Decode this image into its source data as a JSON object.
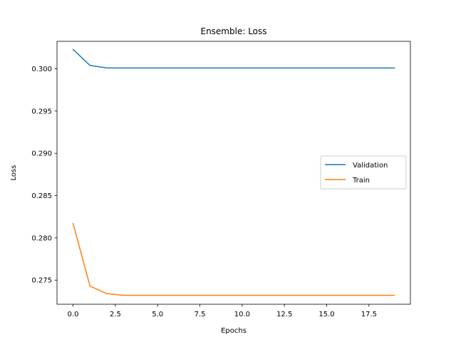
{
  "chart_data": {
    "type": "line",
    "title": "Ensemble: Loss",
    "xlabel": "Epochs",
    "ylabel": "Loss",
    "xlim": [
      -0.95,
      19.95
    ],
    "ylim": [
      0.27215,
      0.30325
    ],
    "xticks": [
      0.0,
      2.5,
      5.0,
      7.5,
      10.0,
      12.5,
      15.0,
      17.5
    ],
    "xtick_labels": [
      "0.0",
      "2.5",
      "5.0",
      "7.5",
      "10.0",
      "12.5",
      "15.0",
      "17.5"
    ],
    "yticks": [
      0.275,
      0.28,
      0.285,
      0.29,
      0.295,
      0.3
    ],
    "ytick_labels": [
      "0.275",
      "0.280",
      "0.285",
      "0.290",
      "0.295",
      "0.300"
    ],
    "grid": false,
    "legend_position": "center-right",
    "x": [
      0,
      1,
      2,
      3,
      4,
      5,
      6,
      7,
      8,
      9,
      10,
      11,
      12,
      13,
      14,
      15,
      16,
      17,
      18,
      19
    ],
    "series": [
      {
        "name": "Validation",
        "color": "#1f77b4",
        "values": [
          0.3023,
          0.3004,
          0.3001,
          0.3001,
          0.3001,
          0.3001,
          0.3001,
          0.3001,
          0.3001,
          0.3001,
          0.3001,
          0.3001,
          0.3001,
          0.3001,
          0.3001,
          0.3001,
          0.3001,
          0.3001,
          0.3001,
          0.3001
        ]
      },
      {
        "name": "Train",
        "color": "#ff7f0e",
        "values": [
          0.2817,
          0.2743,
          0.2734,
          0.2732,
          0.2732,
          0.2732,
          0.2732,
          0.2732,
          0.2732,
          0.2732,
          0.2732,
          0.2732,
          0.2732,
          0.2732,
          0.2732,
          0.2732,
          0.2732,
          0.2732,
          0.2732,
          0.2732
        ]
      }
    ]
  }
}
